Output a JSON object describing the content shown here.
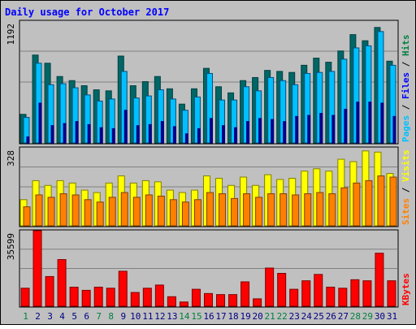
{
  "title": "Daily usage for October 2017",
  "colors": {
    "background": "#c0c0c0",
    "frame": "#000000",
    "title": "#0000ff",
    "grid": "#808080",
    "hits": "#006666",
    "hits_fill": "#008040",
    "files": "#0080ff",
    "files_fill": "#00c0ff",
    "pages": "#00008b",
    "visits": "#ffff00",
    "sites": "#ff8000",
    "kbytes": "#ff0000",
    "day_weekday": "#000080",
    "day_weekend": "#008040"
  },
  "panels": {
    "top": {
      "max_label": "1192",
      "legend": [
        {
          "text": "Pages",
          "color": "#00c0ff"
        },
        {
          "text": " / ",
          "color": "#000000"
        },
        {
          "text": "Files",
          "color": "#0000ff"
        },
        {
          "text": " / ",
          "color": "#000000"
        },
        {
          "text": "Hits",
          "color": "#008040"
        }
      ]
    },
    "middle": {
      "max_label": "328",
      "legend": [
        {
          "text": "Sites",
          "color": "#ff8000"
        },
        {
          "text": " / ",
          "color": "#000000"
        },
        {
          "text": "Visits",
          "color": "#ffff00"
        }
      ]
    },
    "bottom": {
      "max_label": "35599",
      "legend": [
        {
          "text": "KBytes",
          "color": "#ff0000"
        }
      ]
    }
  },
  "chart_data": {
    "type": "bar",
    "title": "Daily usage for October 2017",
    "categories": [
      "1",
      "2",
      "3",
      "4",
      "5",
      "6",
      "7",
      "8",
      "9",
      "10",
      "11",
      "12",
      "13",
      "14",
      "15",
      "16",
      "17",
      "18",
      "19",
      "20",
      "21",
      "22",
      "23",
      "24",
      "25",
      "26",
      "27",
      "28",
      "29",
      "30",
      "31"
    ],
    "weekend_days": [
      "1",
      "7",
      "8",
      "14",
      "15",
      "21",
      "22",
      "28",
      "29"
    ],
    "panels": [
      {
        "name": "top",
        "ylim": [
          0,
          1192
        ],
        "series": [
          {
            "name": "Hits",
            "values": [
              280,
              860,
              780,
              650,
              610,
              560,
              520,
              510,
              850,
              560,
              600,
              650,
              530,
              380,
              530,
              730,
              550,
              490,
              610,
              640,
              710,
              700,
              690,
              760,
              830,
              790,
              900,
              1060,
              1000,
              1130,
              800
            ]
          },
          {
            "name": "Files",
            "values": [
              250,
              780,
              570,
              580,
              540,
              470,
              410,
              430,
              700,
              440,
              460,
              520,
              430,
              320,
              450,
              680,
              420,
              420,
              550,
              510,
              640,
              610,
              570,
              680,
              690,
              700,
              820,
              930,
              950,
              1090,
              760
            ]
          },
          {
            "name": "Pages",
            "values": [
              60,
              390,
              170,
              190,
              210,
              180,
              150,
              140,
              320,
              170,
              180,
              210,
              160,
              90,
              140,
              240,
              170,
              150,
              210,
              240,
              230,
              210,
              260,
              270,
              290,
              270,
              330,
              400,
              400,
              390,
              260
            ]
          }
        ]
      },
      {
        "name": "middle",
        "ylim": [
          0,
          328
        ],
        "series": [
          {
            "name": "Visits",
            "values": [
              110,
              190,
              170,
              190,
              180,
              150,
              140,
              180,
              210,
              180,
              190,
              185,
              150,
              140,
              150,
              210,
              200,
              170,
              205,
              170,
              215,
              195,
              200,
              230,
              240,
              230,
              280,
              270,
              315,
              310,
              220
            ]
          },
          {
            "name": "Sites",
            "values": [
              80,
              130,
              120,
              135,
              130,
              110,
              100,
              120,
              140,
              120,
              130,
              125,
              110,
              100,
              110,
              140,
              135,
              115,
              135,
              120,
              135,
              135,
              130,
              135,
              140,
              135,
              160,
              180,
              190,
              210,
              205
            ]
          }
        ]
      },
      {
        "name": "bottom",
        "ylim": [
          0,
          35599
        ],
        "series": [
          {
            "name": "KBytes",
            "values": [
              8500,
              35599,
              14000,
              22000,
              9000,
              7500,
              9000,
              8500,
              16500,
              6500,
              8500,
              10000,
              4500,
              2000,
              8000,
              6000,
              5500,
              5500,
              11500,
              3500,
              18000,
              15500,
              8000,
              12000,
              15000,
              9000,
              8500,
              12500,
              12000,
              25000,
              12000
            ]
          }
        ]
      }
    ]
  }
}
